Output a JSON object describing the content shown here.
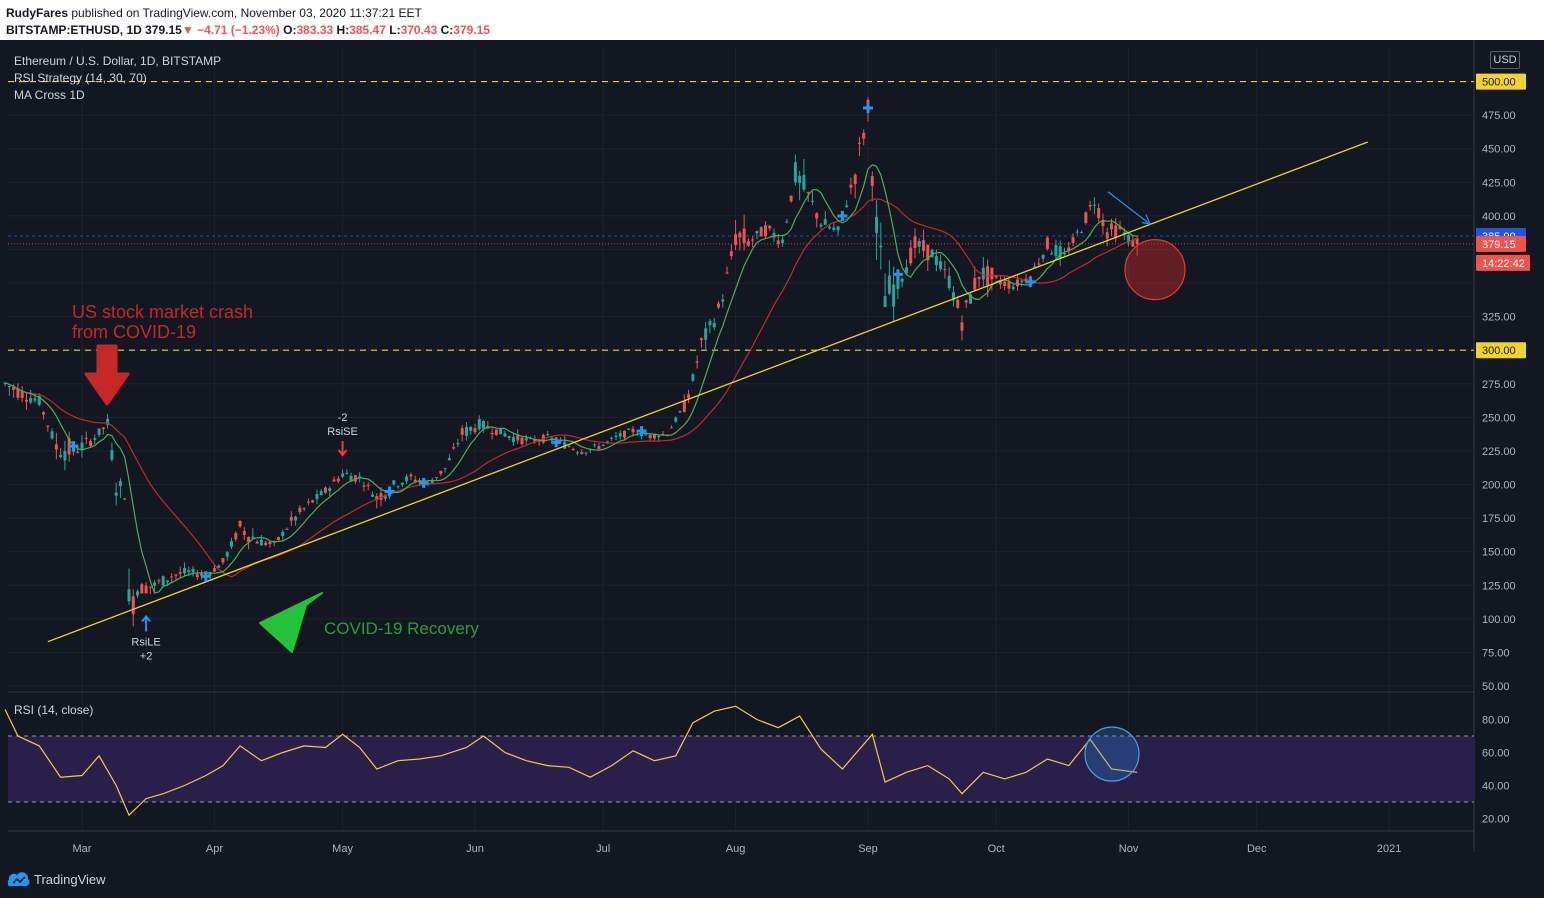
{
  "header": {
    "author": "RudyFares",
    "published": "published on TradingView.com, November 03, 2020 11:37:21 EET",
    "symbol": "BITSTAMP:ETHUSD, 1D",
    "last": "379.15",
    "change": "−4.71 (−1.23%)",
    "open_label": "O:",
    "open": "383.33",
    "high_label": "H:",
    "high": "385.47",
    "low_label": "L:",
    "low": "370.43",
    "close_label": "C:",
    "close": "379.15"
  },
  "legend": {
    "title": "Ethereum / U.S. Dollar, 1D, BITSTAMP",
    "strategy": "RSI Strategy (14, 30, 70)",
    "ma": "MA Cross 1D",
    "rsi": "RSI (14, close)"
  },
  "currency": "USD",
  "footer": {
    "brand": "TradingView"
  },
  "colors": {
    "background": "#131722",
    "up": "#26a69a",
    "down": "#ef5350",
    "fast_ma": "#4caf50",
    "slow_ma": "#c62828",
    "trendline": "#f2d32a",
    "rsi_line": "#f2c94c",
    "rsi_band": "#2a1f4a",
    "signal": "#2196f3"
  },
  "chart_data": [
    {
      "type": "candlestick",
      "x_axis_ticks": [
        "Mar",
        "Apr",
        "May",
        "Jun",
        "Jul",
        "Aug",
        "Sep",
        "Oct",
        "Nov",
        "Dec",
        "2021"
      ],
      "y_axis_ticks": [
        50,
        75,
        100,
        125,
        150,
        175,
        200,
        225,
        250,
        275,
        300,
        325,
        350,
        375,
        400,
        425,
        450,
        475,
        500
      ],
      "ylim": [
        50,
        525
      ],
      "price_series": [
        [
          "Feb 12",
          265,
          285,
          250,
          275
        ],
        [
          "Feb 16",
          275,
          288,
          258,
          268
        ],
        [
          "Feb 20",
          268,
          278,
          255,
          262
        ],
        [
          "Feb 24",
          262,
          272,
          218,
          228
        ],
        [
          "Feb 28",
          228,
          240,
          210,
          225
        ],
        [
          "Mar 3",
          225,
          238,
          218,
          232
        ],
        [
          "Mar 7",
          232,
          255,
          225,
          245
        ],
        [
          "Mar 9",
          245,
          248,
          198,
          200
        ],
        [
          "Mar 11",
          200,
          205,
          185,
          192
        ],
        [
          "Mar 12",
          192,
          195,
          108,
          112
        ],
        [
          "Mar 14",
          112,
          130,
          100,
          122
        ],
        [
          "Mar 18",
          122,
          135,
          110,
          125
        ],
        [
          "Mar 22",
          125,
          140,
          118,
          132
        ],
        [
          "Mar 26",
          132,
          142,
          125,
          135
        ],
        [
          "Mar 30",
          135,
          142,
          128,
          132
        ],
        [
          "Apr 3",
          132,
          148,
          128,
          142
        ],
        [
          "Apr 7",
          142,
          175,
          140,
          168
        ],
        [
          "Apr 11",
          168,
          172,
          152,
          158
        ],
        [
          "Apr 15",
          158,
          165,
          150,
          155
        ],
        [
          "Apr 19",
          155,
          178,
          152,
          172
        ],
        [
          "Apr 23",
          172,
          188,
          168,
          185
        ],
        [
          "Apr 27",
          185,
          198,
          178,
          195
        ],
        [
          "May 1",
          195,
          215,
          190,
          208
        ],
        [
          "May 5",
          208,
          215,
          198,
          205
        ],
        [
          "May 9",
          205,
          212,
          180,
          190
        ],
        [
          "May 13",
          190,
          205,
          185,
          200
        ],
        [
          "May 17",
          200,
          210,
          192,
          205
        ],
        [
          "May 21",
          205,
          210,
          195,
          200
        ],
        [
          "May 25",
          200,
          215,
          198,
          212
        ],
        [
          "May 29",
          212,
          240,
          210,
          238
        ],
        [
          "Jun 2",
          238,
          252,
          230,
          245
        ],
        [
          "Jun 6",
          245,
          250,
          232,
          240
        ],
        [
          "Jun 10",
          240,
          248,
          228,
          235
        ],
        [
          "Jun 14",
          235,
          242,
          225,
          232
        ],
        [
          "Jun 18",
          232,
          240,
          225,
          235
        ],
        [
          "Jun 22",
          235,
          245,
          225,
          230
        ],
        [
          "Jun 26",
          230,
          234,
          218,
          225
        ],
        [
          "Jun 30",
          225,
          232,
          220,
          228
        ],
        [
          "Jul 4",
          228,
          240,
          225,
          235
        ],
        [
          "Jul 8",
          235,
          245,
          230,
          240
        ],
        [
          "Jul 12",
          240,
          245,
          232,
          236
        ],
        [
          "Jul 16",
          236,
          242,
          230,
          238
        ],
        [
          "Jul 20",
          238,
          262,
          235,
          258
        ],
        [
          "Jul 22",
          258,
          282,
          255,
          278
        ],
        [
          "Jul 24",
          278,
          312,
          275,
          305
        ],
        [
          "Jul 27",
          305,
          330,
          300,
          322
        ],
        [
          "Jul 29",
          322,
          345,
          315,
          340
        ],
        [
          "Aug 1",
          340,
          395,
          335,
          385
        ],
        [
          "Aug 4",
          385,
          395,
          370,
          380
        ],
        [
          "Aug 8",
          380,
          400,
          370,
          390
        ],
        [
          "Aug 12",
          390,
          400,
          375,
          382
        ],
        [
          "Aug 15",
          382,
          440,
          378,
          430
        ],
        [
          "Aug 18",
          430,
          442,
          405,
          415
        ],
        [
          "Aug 21",
          415,
          420,
          390,
          395
        ],
        [
          "Aug 25",
          395,
          405,
          378,
          388
        ],
        [
          "Aug 29",
          388,
          440,
          385,
          432
        ],
        [
          "Sep 1",
          432,
          488,
          425,
          478
        ],
        [
          "Sep 3",
          478,
          482,
          380,
          388
        ],
        [
          "Sep 5",
          388,
          392,
          310,
          340
        ],
        [
          "Sep 8",
          340,
          358,
          318,
          350
        ],
        [
          "Sep 12",
          350,
          385,
          345,
          378
        ],
        [
          "Sep 16",
          378,
          392,
          360,
          372
        ],
        [
          "Sep 20",
          372,
          385,
          345,
          352
        ],
        [
          "Sep 23",
          352,
          355,
          312,
          322
        ],
        [
          "Sep 27",
          322,
          365,
          318,
          358
        ],
        [
          "Oct 1",
          358,
          368,
          345,
          352
        ],
        [
          "Oct 5",
          352,
          360,
          340,
          348
        ],
        [
          "Oct 9",
          348,
          362,
          338,
          355
        ],
        [
          "Oct 13",
          355,
          385,
          350,
          378
        ],
        [
          "Oct 17",
          378,
          385,
          365,
          370
        ],
        [
          "Oct 21",
          370,
          395,
          365,
          392
        ],
        [
          "Oct 24",
          392,
          418,
          385,
          412
        ],
        [
          "Oct 27",
          412,
          415,
          380,
          388
        ],
        [
          "Oct 30",
          388,
          400,
          378,
          390
        ],
        [
          "Nov 2",
          390,
          395,
          370,
          380
        ],
        [
          "Nov 3",
          383.33,
          385.47,
          370.43,
          379.15
        ]
      ],
      "horizontal_levels": [
        500,
        300
      ],
      "price_labels": [
        {
          "value": 500,
          "text": "500.00"
        },
        {
          "value": 385,
          "text": "385.00"
        },
        {
          "value": 379.15,
          "text": "379.15"
        },
        {
          "value": 300,
          "text": "300.00"
        }
      ],
      "countdown": "14:22:42",
      "trendline": [
        [
          "Feb 22",
          83
        ],
        [
          "Dec 27",
          455
        ]
      ],
      "signals": [
        {
          "text": "RsiLE",
          "count": "+2"
        },
        {
          "text": "RsiSE",
          "count": "-2"
        }
      ],
      "annotations": [
        {
          "text": "US stock market crash",
          "color": "#c62828"
        },
        {
          "text": "from COVID-19",
          "color": "#c62828"
        },
        {
          "text": "COVID-19 Recovery",
          "color": "#2e9c3a"
        }
      ]
    },
    {
      "type": "line",
      "name": "RSI (14, close)",
      "y_axis_ticks": [
        20,
        40,
        60,
        80
      ],
      "ylim": [
        13,
        93
      ],
      "bands": [
        30,
        70
      ],
      "values": [
        [
          "Feb 12",
          86
        ],
        [
          "Feb 15",
          70
        ],
        [
          "Feb 20",
          64
        ],
        [
          "Feb 25",
          45
        ],
        [
          "Mar 1",
          46
        ],
        [
          "Mar 5",
          58
        ],
        [
          "Mar 9",
          40
        ],
        [
          "Mar 12",
          22
        ],
        [
          "Mar 16",
          32
        ],
        [
          "Mar 20",
          35
        ],
        [
          "Mar 25",
          40
        ],
        [
          "Mar 30",
          46
        ],
        [
          "Apr 3",
          52
        ],
        [
          "Apr 7",
          64
        ],
        [
          "Apr 12",
          55
        ],
        [
          "Apr 17",
          60
        ],
        [
          "Apr 22",
          64
        ],
        [
          "Apr 27",
          63
        ],
        [
          "May 1",
          71
        ],
        [
          "May 5",
          63
        ],
        [
          "May 9",
          50
        ],
        [
          "May 14",
          55
        ],
        [
          "May 19",
          56
        ],
        [
          "May 24",
          58
        ],
        [
          "May 30",
          63
        ],
        [
          "Jun 3",
          70
        ],
        [
          "Jun 8",
          60
        ],
        [
          "Jun 13",
          55
        ],
        [
          "Jun 18",
          52
        ],
        [
          "Jun 23",
          51
        ],
        [
          "Jun 28",
          45
        ],
        [
          "Jul 3",
          52
        ],
        [
          "Jul 8",
          61
        ],
        [
          "Jul 13",
          55
        ],
        [
          "Jul 18",
          58
        ],
        [
          "Jul 22",
          78
        ],
        [
          "Jul 27",
          85
        ],
        [
          "Aug 1",
          88
        ],
        [
          "Aug 6",
          80
        ],
        [
          "Aug 11",
          75
        ],
        [
          "Aug 16",
          82
        ],
        [
          "Aug 21",
          62
        ],
        [
          "Aug 26",
          50
        ],
        [
          "Aug 30",
          62
        ],
        [
          "Sep 2",
          71
        ],
        [
          "Sep 5",
          42
        ],
        [
          "Sep 10",
          48
        ],
        [
          "Sep 15",
          52
        ],
        [
          "Sep 20",
          44
        ],
        [
          "Sep 23",
          35
        ],
        [
          "Sep 28",
          48
        ],
        [
          "Oct 3",
          44
        ],
        [
          "Oct 8",
          48
        ],
        [
          "Oct 13",
          56
        ],
        [
          "Oct 18",
          52
        ],
        [
          "Oct 23",
          68
        ],
        [
          "Oct 28",
          50
        ],
        [
          "Nov 3",
          48
        ]
      ]
    }
  ]
}
